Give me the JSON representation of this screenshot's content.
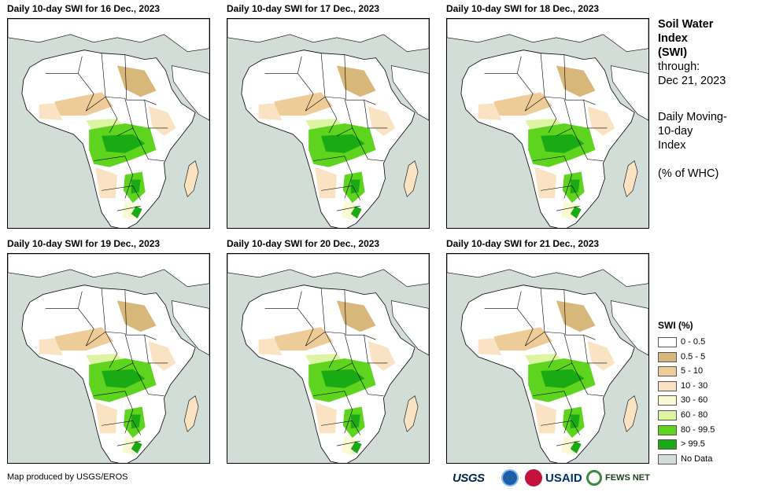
{
  "panels": [
    {
      "title": "Daily 10-day SWI for 16 Dec., 2023"
    },
    {
      "title": "Daily 10-day SWI for 17 Dec., 2023"
    },
    {
      "title": "Daily 10-day SWI for 18 Dec., 2023"
    },
    {
      "title": "Daily 10-day SWI for 19 Dec., 2023"
    },
    {
      "title": "Daily 10-day SWI for 20 Dec., 2023"
    },
    {
      "title": "Daily 10-day SWI for 21 Dec., 2023"
    }
  ],
  "info": {
    "title_line1": "Soil Water",
    "title_line2": "Index",
    "title_line3": "(SWI)",
    "through_label": "through:",
    "through_date": "Dec 21, 2023",
    "desc_line1": "Daily Moving-",
    "desc_line2": "10-day",
    "desc_line3": "Index",
    "unit": "(% of WHC)"
  },
  "legend": {
    "title": "SWI (%)",
    "items": [
      {
        "label": "0 - 0.5",
        "color": "#ffffff"
      },
      {
        "label": "0.5 - 5",
        "color": "#d8b77a"
      },
      {
        "label": "5 - 10",
        "color": "#edcc98"
      },
      {
        "label": "10 - 30",
        "color": "#fae3c2"
      },
      {
        "label": "30 - 60",
        "color": "#fafad2"
      },
      {
        "label": "60 - 80",
        "color": "#ddf5a2"
      },
      {
        "label": "80 - 99.5",
        "color": "#5fd41e"
      },
      {
        "label": "> 99.5",
        "color": "#1aab14"
      },
      {
        "label": "No Data",
        "color": "#d3ddd8"
      }
    ]
  },
  "footer": {
    "credit": "Map produced by USGS/EROS",
    "logo_usgs": "USGS",
    "logo_usaid": "USAID",
    "logo_fews": "FEWS NET"
  }
}
